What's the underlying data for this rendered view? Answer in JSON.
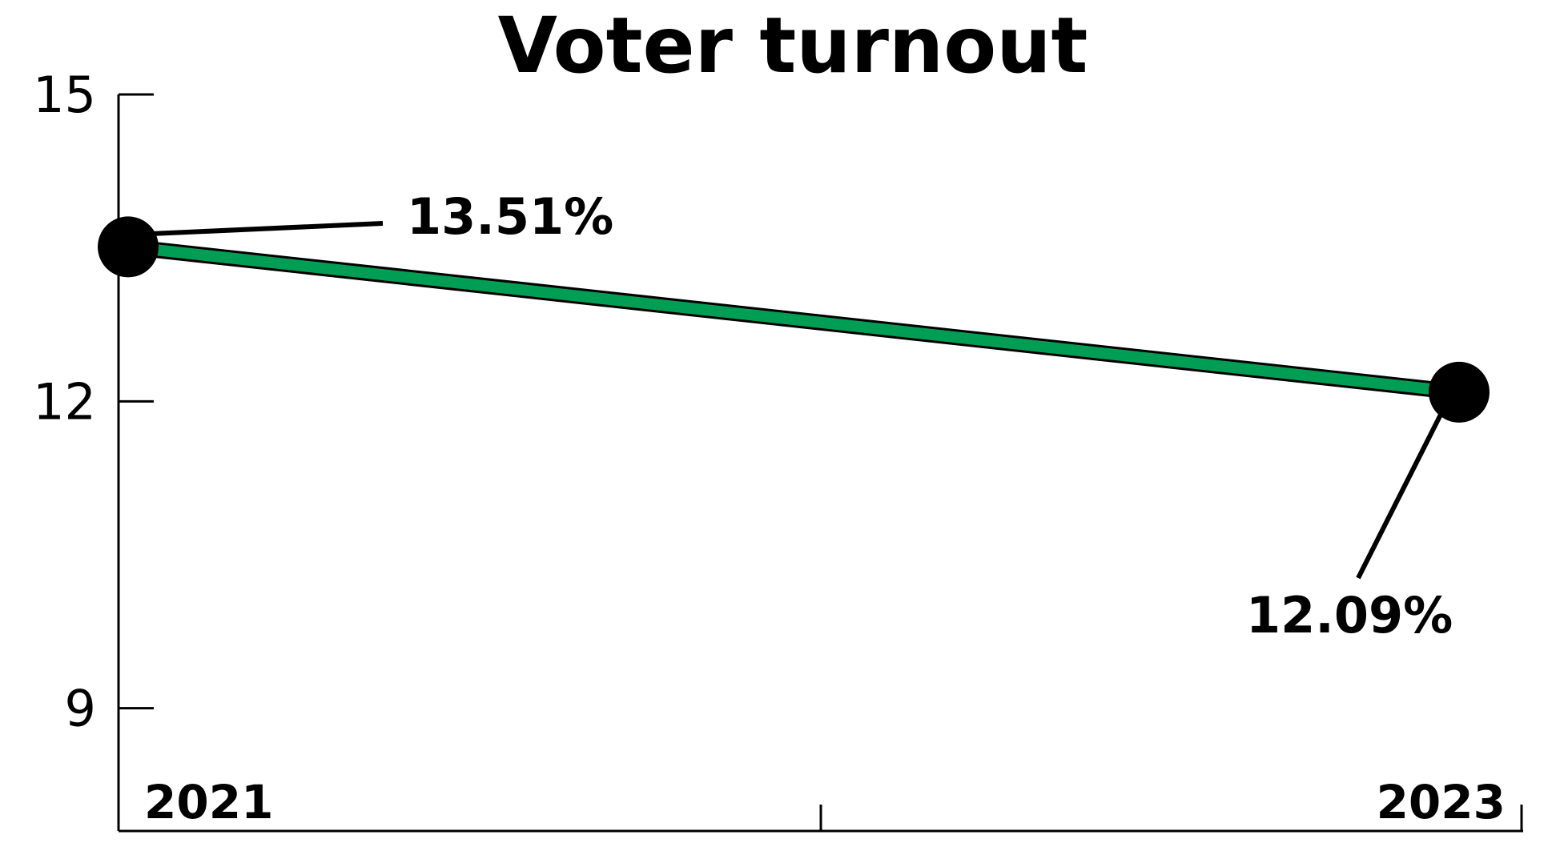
{
  "chart_data": {
    "type": "line",
    "title": "Voter turnout",
    "xlabel": "",
    "ylabel": "",
    "x": [
      "2021",
      "2023"
    ],
    "series": [
      {
        "values": [
          13.51,
          12.09
        ],
        "labels": [
          "13.51%",
          "12.09%"
        ]
      }
    ],
    "y_ticks": [
      "15",
      "12",
      "9"
    ],
    "ylim": [
      7.8,
      15
    ],
    "grid": false,
    "line_color": "#009E55",
    "line_outline_color": "#000000",
    "marker_color": "#000000"
  }
}
